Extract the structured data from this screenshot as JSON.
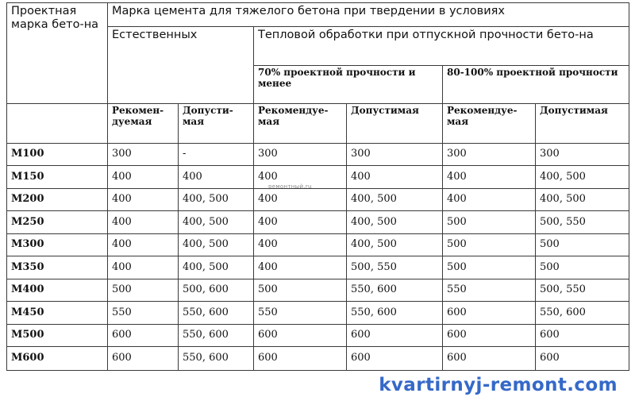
{
  "table": {
    "col1_header": "Проектная марка бето-на",
    "group_header": "Марка цемента для тяжелого бетона при твердении в условиях",
    "natural_header": "Естественных",
    "thermal_header": "Тепловой обработки при отпускной прочности бето-на",
    "thermal_70_header": "70% проектной прочности и менее",
    "thermal_80_header": "80-100% проектной прочности",
    "sub_headers": [
      "Рекомен-дуемая",
      "Допусти-мая",
      "Рекомендуе-мая",
      "Допустимая",
      "Рекомендуе-мая",
      "Допустимая"
    ],
    "rows": [
      {
        "grade": "М100",
        "values": [
          "300",
          "-",
          "300",
          "300",
          "300",
          "300"
        ]
      },
      {
        "grade": "М150",
        "values": [
          "400",
          "400",
          "400",
          "400",
          "400",
          "400, 500"
        ]
      },
      {
        "grade": "М200",
        "values": [
          "400",
          "400, 500",
          "400",
          "400, 500",
          "400",
          "400, 500"
        ]
      },
      {
        "grade": "М250",
        "values": [
          "400",
          "400, 500",
          "400",
          "400, 500",
          "500",
          "500, 550"
        ]
      },
      {
        "grade": "М300",
        "values": [
          "400",
          "400, 500",
          "400",
          "400, 500",
          "500",
          "500"
        ]
      },
      {
        "grade": "М350",
        "values": [
          "400",
          "400, 500",
          "400",
          "500, 550",
          "500",
          "500"
        ]
      },
      {
        "grade": "М400",
        "values": [
          "500",
          "500, 600",
          "500",
          "550, 600",
          "550",
          "500, 550"
        ]
      },
      {
        "grade": "М450",
        "values": [
          "550",
          "550, 600",
          "550",
          "550, 600",
          "600",
          "550, 600"
        ]
      },
      {
        "grade": "М500",
        "values": [
          "600",
          "550, 600",
          "600",
          "600",
          "600",
          "600"
        ]
      },
      {
        "grade": "М600",
        "values": [
          "600",
          "550, 600",
          "600",
          "600",
          "600",
          "600"
        ]
      }
    ]
  },
  "faint_mark": "ремонтный.ru",
  "watermark": "kvartirnyj-remont.com"
}
